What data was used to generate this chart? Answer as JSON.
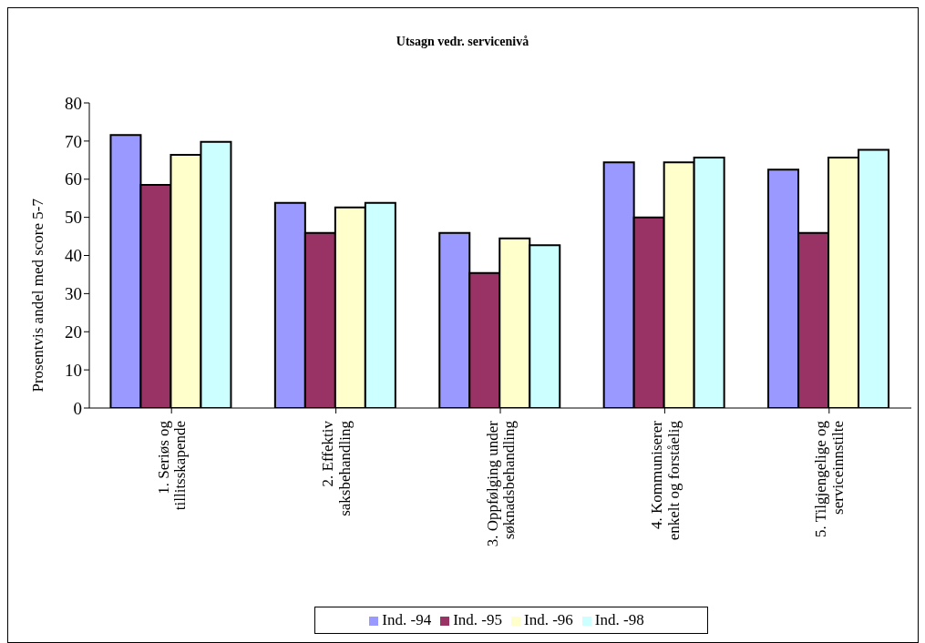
{
  "chart_data": {
    "type": "bar",
    "title": "Utsagn vedr. servicenivå",
    "ylabel": "Prosentvis andel med score 5-7",
    "categories": [
      "1. Seriøs og tillitsskapende",
      "2. Effektiv saksbehandling",
      "3. Oppfølging under søknadsbehandling",
      "4. Kommuniserer enkelt og forståelig",
      "5. Tilgjengelige og serviceinnstilte"
    ],
    "series": [
      {
        "name": "Ind. -94",
        "color": "#9999ff",
        "values": [
          71.6,
          53.8,
          45.9,
          64.4,
          62.5
        ]
      },
      {
        "name": "Ind. -95",
        "color": "#993366",
        "values": [
          58.5,
          45.9,
          35.4,
          50.0,
          45.9
        ]
      },
      {
        "name": "Ind. -96",
        "color": "#ffffcc",
        "values": [
          66.4,
          52.6,
          44.5,
          64.4,
          65.7
        ]
      },
      {
        "name": "Ind. -98",
        "color": "#ccffff",
        "values": [
          69.8,
          53.8,
          42.7,
          65.7,
          67.7
        ]
      }
    ],
    "ylim": [
      0,
      80
    ],
    "yticks": [
      0,
      10,
      20,
      30,
      40,
      50,
      60,
      70,
      80
    ],
    "grid": false,
    "legend": "bottom"
  }
}
